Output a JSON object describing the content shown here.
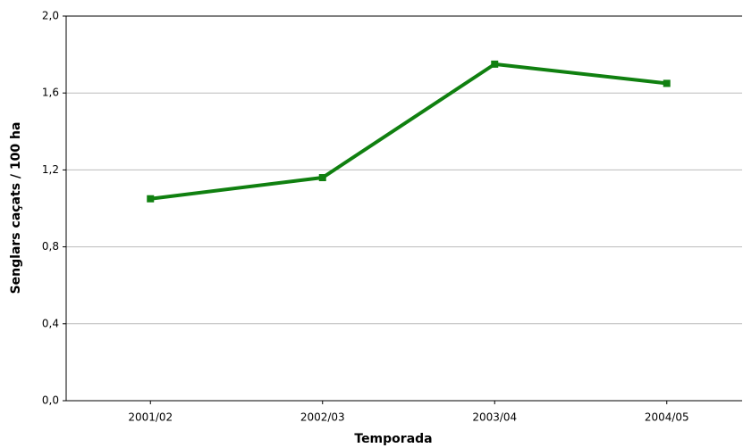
{
  "chart_data": {
    "type": "line",
    "x_label": "Temporada",
    "y_label": "Senglars caçats / 100 ha",
    "categories": [
      "2001/02",
      "2002/03",
      "2003/04",
      "2004/05"
    ],
    "series": [
      {
        "name": "Senglars caçats / 100 ha",
        "color": "#108010",
        "values": [
          1.05,
          1.16,
          1.75,
          1.65
        ]
      }
    ],
    "ylim": [
      0,
      2
    ],
    "yticks": [
      {
        "value": 0,
        "label": "0,0"
      },
      {
        "value": 0.4,
        "label": "0,4"
      },
      {
        "value": 0.8,
        "label": "0,8"
      },
      {
        "value": 1.2,
        "label": "1,2"
      },
      {
        "value": 1.6,
        "label": "1,6"
      },
      {
        "value": 2,
        "label": "2,0"
      }
    ],
    "grid": true
  }
}
